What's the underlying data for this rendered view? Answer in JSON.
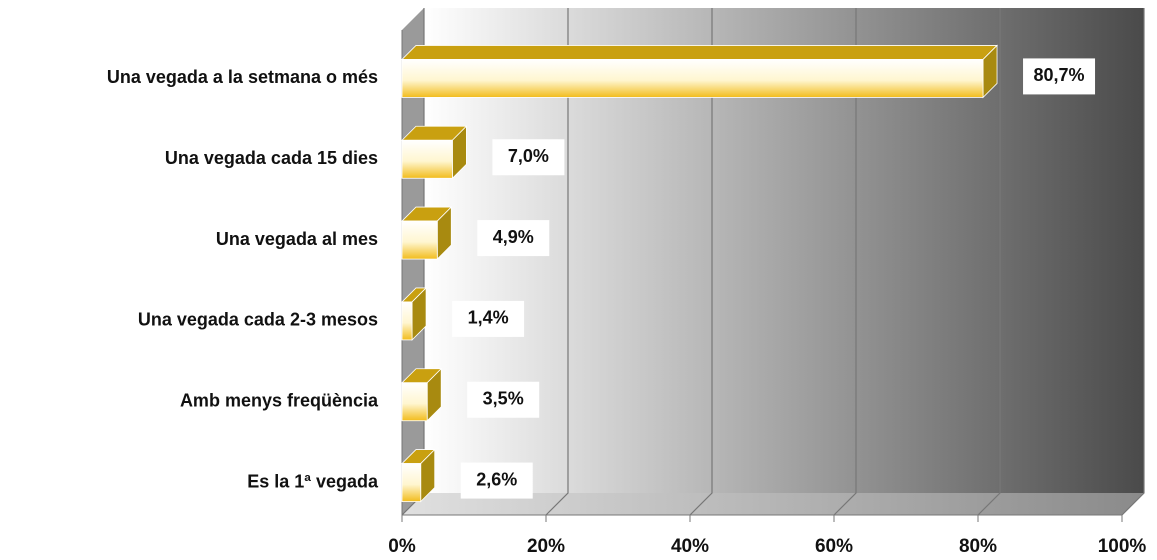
{
  "chart_data": {
    "type": "bar",
    "orientation": "horizontal",
    "categories": [
      "Una vegada a la setmana o més",
      "Una vegada cada 15 dies",
      "Una vegada al mes",
      "Una vegada cada 2-3 mesos",
      "Amb menys freqüència",
      "Es la 1ª vegada"
    ],
    "values": [
      80.7,
      7.0,
      4.9,
      1.4,
      3.5,
      2.6
    ],
    "value_labels": [
      "80,7%",
      "7,0%",
      "4,9%",
      "1,4%",
      "3,5%",
      "2,6%"
    ],
    "color": "#f2bc1c",
    "xlim": [
      0,
      100
    ],
    "xticks": [
      {
        "value": 0,
        "label": "0%"
      },
      {
        "value": 20,
        "label": "20%"
      },
      {
        "value": 40,
        "label": "40%"
      },
      {
        "value": 60,
        "label": "60%"
      },
      {
        "value": 80,
        "label": "80%"
      },
      {
        "value": 100,
        "label": "100%"
      }
    ],
    "grid": true
  }
}
